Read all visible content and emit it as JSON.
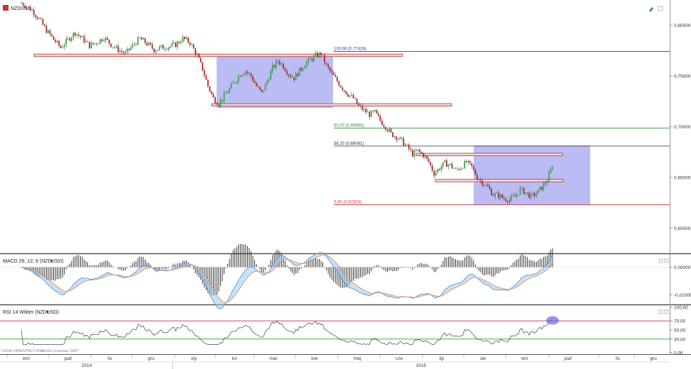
{
  "symbol": "NZDUSD",
  "chart_data": [
    {
      "type": "line",
      "panel": "price",
      "title": "NZDUSD",
      "y_ticks": [
        "0,80000",
        "0,75000",
        "0,70000",
        "0,65000",
        "0,60000"
      ],
      "y_tick_values": [
        0.8,
        0.75,
        0.7,
        0.65,
        0.6
      ],
      "ylim": [
        0.575,
        0.825
      ],
      "x_ticks": [
        "wrz",
        "paź",
        "lis",
        "gru",
        "sty",
        "lut",
        "mar",
        "kwi",
        "maj",
        "cze",
        "lip",
        "sie",
        "wrz",
        "paź",
        "lis",
        "gru"
      ],
      "x_year_labels": [
        "2014",
        "2015"
      ],
      "fibonacci": [
        {
          "label": "100,00 (0,77429)",
          "value": 0.77429,
          "color": "#3a3a8c"
        },
        {
          "label": "50,00 (0,69866)",
          "value": 0.69866,
          "color": "#3a8c3a"
        },
        {
          "label": "38,20 (0,68081)",
          "value": 0.68081,
          "color": "#333333"
        },
        {
          "label": "0,00 (0,62303)",
          "value": 0.62303,
          "color": "#c83232"
        }
      ],
      "close_path": [
        [
          0,
          0.822
        ],
        [
          6,
          0.815
        ],
        [
          10,
          0.806
        ],
        [
          14,
          0.795
        ],
        [
          18,
          0.786
        ],
        [
          22,
          0.778
        ],
        [
          26,
          0.786
        ],
        [
          30,
          0.793
        ],
        [
          34,
          0.787
        ],
        [
          38,
          0.78
        ],
        [
          42,
          0.783
        ],
        [
          46,
          0.788
        ],
        [
          50,
          0.781
        ],
        [
          54,
          0.776
        ],
        [
          58,
          0.772
        ],
        [
          62,
          0.78
        ],
        [
          66,
          0.787
        ],
        [
          70,
          0.782
        ],
        [
          74,
          0.776
        ],
        [
          78,
          0.778
        ],
        [
          82,
          0.779
        ],
        [
          86,
          0.781
        ],
        [
          90,
          0.787
        ],
        [
          94,
          0.783
        ],
        [
          98,
          0.77
        ],
        [
          101,
          0.757
        ],
        [
          104,
          0.74
        ],
        [
          107,
          0.728
        ],
        [
          110,
          0.723
        ],
        [
          113,
          0.73
        ],
        [
          116,
          0.737
        ],
        [
          119,
          0.745
        ],
        [
          122,
          0.752
        ],
        [
          125,
          0.755
        ],
        [
          128,
          0.75
        ],
        [
          131,
          0.74
        ],
        [
          134,
          0.733
        ],
        [
          137,
          0.745
        ],
        [
          140,
          0.758
        ],
        [
          143,
          0.765
        ],
        [
          146,
          0.76
        ],
        [
          149,
          0.752
        ],
        [
          152,
          0.748
        ],
        [
          155,
          0.755
        ],
        [
          158,
          0.762
        ],
        [
          161,
          0.766
        ],
        [
          164,
          0.77
        ],
        [
          167,
          0.772
        ],
        [
          170,
          0.76
        ],
        [
          173,
          0.752
        ],
        [
          176,
          0.745
        ],
        [
          179,
          0.738
        ],
        [
          182,
          0.732
        ],
        [
          185,
          0.728
        ],
        [
          188,
          0.72
        ],
        [
          191,
          0.716
        ],
        [
          194,
          0.712
        ],
        [
          197,
          0.714
        ],
        [
          200,
          0.706
        ],
        [
          203,
          0.7
        ],
        [
          206,
          0.693
        ],
        [
          209,
          0.69
        ],
        [
          212,
          0.686
        ],
        [
          215,
          0.68
        ],
        [
          218,
          0.673
        ],
        [
          221,
          0.676
        ],
        [
          224,
          0.672
        ],
        [
          227,
          0.665
        ],
        [
          230,
          0.654
        ],
        [
          233,
          0.659
        ],
        [
          236,
          0.664
        ],
        [
          239,
          0.662
        ],
        [
          242,
          0.657
        ],
        [
          245,
          0.66
        ],
        [
          248,
          0.665
        ],
        [
          251,
          0.66
        ],
        [
          254,
          0.65
        ],
        [
          257,
          0.645
        ],
        [
          260,
          0.64
        ],
        [
          263,
          0.633
        ],
        [
          266,
          0.632
        ],
        [
          269,
          0.629
        ],
        [
          272,
          0.628
        ],
        [
          275,
          0.631
        ],
        [
          278,
          0.638
        ],
        [
          281,
          0.635
        ],
        [
          284,
          0.631
        ],
        [
          287,
          0.634
        ],
        [
          290,
          0.64
        ],
        [
          293,
          0.647
        ],
        [
          296,
          0.662
        ]
      ]
    },
    {
      "type": "line",
      "panel": "macd",
      "title": "MACD 26; 12; 9 (NZDUSD)",
      "y_ticks": [
        "0,00000",
        "-0,01000"
      ],
      "y_tick_values": [
        0,
        -0.01
      ],
      "ylim": [
        -0.0135,
        0.0045
      ]
    },
    {
      "type": "line",
      "panel": "rsi",
      "title": "RSI 14 Wilder (NZDUSD)",
      "y_ticks": [
        "100,00",
        "70,00",
        "50,00",
        "30,00",
        "0,00"
      ],
      "y_tick_values": [
        100,
        70,
        50,
        30,
        0
      ],
      "levels": [
        70,
        30
      ],
      "ylim": [
        0,
        100
      ]
    }
  ],
  "footer": {
    "label": "CENA ORIENTACYJNA",
    "timezone": "Strefa czasowa: GMT"
  }
}
